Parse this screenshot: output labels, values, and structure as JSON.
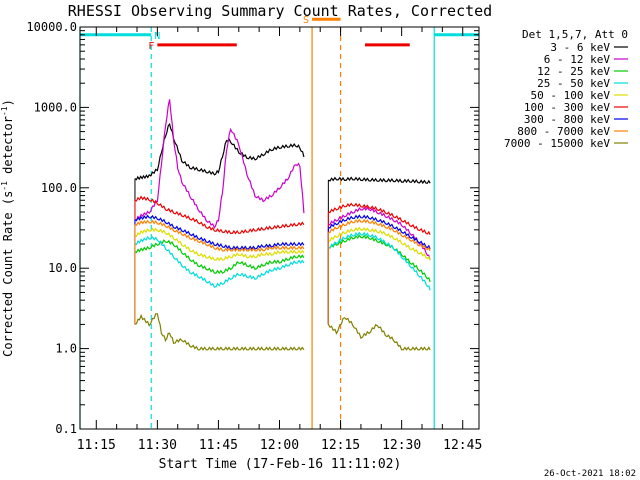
{
  "chart_data": {
    "type": "line",
    "title": "RHESSI Observing Summary Count Rates, Corrected",
    "xlabel": "Start Time (17-Feb-16 11:11:02)",
    "ylabel": "Corrected Count Rate (s⁻¹ detector⁻¹)",
    "ylabel_parts": {
      "base": "Corrected Count Rate (s",
      "sup1": "-1",
      "mid": " detector",
      "sup2": "-1",
      "end": ")"
    },
    "footer": "26-Oct-2021 18:02",
    "y_scale": "log",
    "ylim": [
      0.1,
      10000
    ],
    "xlim_minutes": [
      11.0,
      109.0
    ],
    "y_ticks": [
      {
        "value": 0.1,
        "label": "0.1"
      },
      {
        "value": 1,
        "label": "1.0"
      },
      {
        "value": 10,
        "label": "10.0"
      },
      {
        "value": 100,
        "label": "100.0"
      },
      {
        "value": 1000,
        "label": "1000.0"
      },
      {
        "value": 10000,
        "label": "10000.0"
      }
    ],
    "x_ticks": [
      {
        "value": 15,
        "label": "11:15"
      },
      {
        "value": 30,
        "label": "11:30"
      },
      {
        "value": 45,
        "label": "11:45"
      },
      {
        "value": 60,
        "label": "12:00"
      },
      {
        "value": 75,
        "label": "12:15"
      },
      {
        "value": 90,
        "label": "12:30"
      },
      {
        "value": 105,
        "label": "12:45"
      }
    ],
    "legend": {
      "title": "Det 1,5,7, Att 0",
      "placement": "right",
      "entries": [
        {
          "label": "3 - 6 keV",
          "color": "#000000"
        },
        {
          "label": "6 - 12 keV",
          "color": "#cc00cc"
        },
        {
          "label": "12 - 25 keV",
          "color": "#00cc00"
        },
        {
          "label": "25 - 50 keV",
          "color": "#00dddd"
        },
        {
          "label": "50 - 100 keV",
          "color": "#dddd00"
        },
        {
          "label": "100 - 300 keV",
          "color": "#ee0000"
        },
        {
          "label": "300 - 800 keV",
          "color": "#0000ee"
        },
        {
          "label": "800 - 7000 keV",
          "color": "#ff8000"
        },
        {
          "label": "7000 - 15000 keV",
          "color": "#808000"
        }
      ]
    },
    "segments": [
      {
        "x_start": 24.5,
        "x_end": 66.0
      },
      {
        "x_start": 72.0,
        "x_end": 97.0
      }
    ],
    "series": [
      {
        "name": "3 - 6 keV",
        "color": "#000000",
        "x": [
          24.5,
          28,
          30,
          31,
          32,
          33,
          34,
          36,
          38,
          40,
          42,
          44,
          45,
          46,
          47,
          48,
          50,
          52,
          54,
          56,
          58,
          60,
          62,
          64,
          65,
          66,
          72,
          74,
          76,
          78,
          80,
          82,
          84,
          86,
          88,
          90,
          92,
          94,
          96,
          97
        ],
        "y": [
          130,
          140,
          170,
          280,
          450,
          640,
          420,
          220,
          180,
          170,
          160,
          150,
          160,
          250,
          400,
          380,
          280,
          240,
          230,
          260,
          300,
          320,
          330,
          340,
          320,
          250,
          125,
          130,
          128,
          130,
          128,
          126,
          125,
          124,
          124,
          122,
          122,
          120,
          118,
          118
        ]
      },
      {
        "name": "6 - 12 keV",
        "color": "#cc00cc",
        "x": [
          24.5,
          26,
          28,
          30,
          31,
          32,
          33,
          34,
          35,
          36,
          38,
          40,
          42,
          44,
          45,
          46,
          47,
          48,
          50,
          52,
          54,
          56,
          58,
          60,
          62,
          64,
          65,
          66,
          72,
          74,
          76,
          78,
          80,
          82,
          84,
          86,
          88,
          90,
          92,
          94,
          96,
          97
        ],
        "y": [
          40,
          45,
          50,
          70,
          200,
          600,
          1300,
          400,
          180,
          120,
          80,
          55,
          40,
          33,
          40,
          90,
          300,
          550,
          350,
          150,
          80,
          70,
          80,
          100,
          130,
          200,
          190,
          50,
          35,
          40,
          45,
          50,
          55,
          55,
          50,
          45,
          40,
          35,
          28,
          22,
          16,
          13
        ]
      },
      {
        "name": "12 - 25 keV",
        "color": "#00cc00",
        "x": [
          24.5,
          26,
          28,
          30,
          32,
          34,
          36,
          38,
          40,
          42,
          44,
          46,
          48,
          50,
          52,
          54,
          56,
          58,
          60,
          62,
          64,
          66,
          72,
          74,
          76,
          78,
          80,
          82,
          84,
          86,
          88,
          90,
          92,
          94,
          96,
          97
        ],
        "y": [
          16,
          17,
          18,
          20,
          22,
          20,
          16,
          13,
          11,
          10,
          9,
          9,
          10,
          12,
          11,
          10,
          11,
          12,
          12,
          13,
          14,
          14,
          18,
          20,
          22,
          24,
          25,
          24,
          22,
          20,
          18,
          15,
          12,
          10,
          8,
          7
        ]
      },
      {
        "name": "25 - 50 keV",
        "color": "#00dddd",
        "x": [
          24.5,
          26,
          28,
          30,
          32,
          34,
          36,
          38,
          40,
          42,
          44,
          46,
          48,
          50,
          52,
          54,
          56,
          58,
          60,
          62,
          64,
          66,
          72,
          74,
          76,
          78,
          80,
          82,
          84,
          86,
          88,
          90,
          92,
          94,
          96,
          97
        ],
        "y": [
          20,
          22,
          24,
          23,
          18,
          14,
          11,
          9,
          8,
          7,
          6,
          6.5,
          7.5,
          8.5,
          8,
          7.5,
          8.5,
          9.5,
          10,
          11,
          12,
          12,
          18,
          21,
          24,
          26,
          27,
          26,
          24,
          21,
          18,
          14,
          11,
          8.5,
          6.5,
          5.5
        ]
      },
      {
        "name": "50 - 100 keV",
        "color": "#dddd00",
        "x": [
          24.5,
          26,
          28,
          30,
          32,
          34,
          36,
          38,
          40,
          42,
          44,
          46,
          48,
          50,
          52,
          54,
          56,
          58,
          60,
          62,
          64,
          66,
          72,
          74,
          76,
          78,
          80,
          82,
          84,
          86,
          88,
          90,
          92,
          94,
          96,
          97
        ],
        "y": [
          25,
          28,
          30,
          30,
          28,
          24,
          20,
          17,
          15,
          14,
          13,
          13,
          14,
          15,
          14,
          14,
          15,
          15,
          16,
          16,
          16,
          16,
          22,
          25,
          28,
          30,
          31,
          30,
          29,
          27,
          24,
          21,
          18,
          16,
          14,
          13
        ]
      },
      {
        "name": "100 - 300 keV",
        "color": "#ee0000",
        "x": [
          24.5,
          26,
          28,
          30,
          32,
          34,
          36,
          38,
          40,
          42,
          44,
          46,
          48,
          50,
          52,
          54,
          56,
          58,
          60,
          62,
          64,
          66,
          72,
          74,
          76,
          78,
          80,
          82,
          84,
          86,
          88,
          90,
          92,
          94,
          96,
          97
        ],
        "y": [
          70,
          75,
          72,
          65,
          55,
          50,
          46,
          42,
          38,
          33,
          30,
          29,
          28,
          28,
          29,
          30,
          31,
          32,
          33,
          34,
          35,
          36,
          50,
          55,
          60,
          62,
          60,
          58,
          55,
          50,
          45,
          40,
          35,
          31,
          28,
          27
        ]
      },
      {
        "name": "300 - 800 keV",
        "color": "#0000ee",
        "x": [
          24.5,
          26,
          28,
          30,
          32,
          34,
          36,
          38,
          40,
          42,
          44,
          46,
          48,
          50,
          52,
          54,
          56,
          58,
          60,
          62,
          64,
          66,
          72,
          74,
          76,
          78,
          80,
          82,
          84,
          86,
          88,
          90,
          92,
          94,
          96,
          97
        ],
        "y": [
          40,
          42,
          44,
          42,
          38,
          33,
          30,
          27,
          24,
          22,
          20,
          19,
          18,
          18,
          18,
          18,
          19,
          19,
          20,
          20,
          20,
          20,
          32,
          36,
          40,
          43,
          44,
          43,
          40,
          37,
          33,
          29,
          25,
          22,
          19,
          18
        ]
      },
      {
        "name": "800 - 7000 keV",
        "color": "#ff8000",
        "x": [
          24.5,
          26,
          28,
          30,
          32,
          34,
          36,
          38,
          40,
          42,
          44,
          46,
          48,
          50,
          52,
          54,
          56,
          58,
          60,
          62,
          64,
          66,
          72,
          74,
          76,
          78,
          80,
          82,
          84,
          86,
          88,
          90,
          92,
          94,
          96,
          97
        ],
        "y": [
          35,
          37,
          38,
          37,
          34,
          30,
          27,
          24,
          22,
          20,
          18,
          17,
          17,
          17,
          17,
          17,
          17,
          18,
          18,
          18,
          18,
          18,
          28,
          32,
          35,
          38,
          39,
          38,
          36,
          33,
          30,
          26,
          23,
          20,
          18,
          17
        ]
      },
      {
        "name": "7000 - 15000 keV",
        "color": "#808000",
        "x": [
          24.5,
          26,
          28,
          30,
          31,
          32,
          33,
          34,
          36,
          38,
          40,
          42,
          44,
          46,
          48,
          50,
          52,
          54,
          56,
          58,
          60,
          62,
          64,
          66,
          72,
          74,
          76,
          78,
          80,
          82,
          84,
          86,
          88,
          90,
          92,
          94,
          96,
          97
        ],
        "y": [
          2.0,
          2.5,
          2.0,
          2.8,
          1.6,
          1.3,
          1.6,
          1.2,
          1.3,
          1.1,
          1.0,
          1.0,
          1.0,
          1.0,
          1.0,
          1.0,
          1.0,
          1.0,
          1.0,
          1.0,
          1.0,
          1.0,
          1.0,
          1.0,
          2.0,
          1.6,
          2.5,
          2.0,
          1.4,
          1.6,
          2.0,
          1.5,
          1.3,
          1.0,
          1.0,
          1.0,
          1.0,
          1.0
        ]
      }
    ],
    "flags": [
      {
        "label": "F",
        "color": "#ee0000",
        "x_start": 30.0,
        "x_end": 49.5,
        "y": 6000,
        "label_side": "left"
      },
      {
        "label": "F",
        "color": "#ee0000",
        "x_start": 81.0,
        "x_end": 92.0,
        "y": 6000,
        "label_side": "none"
      },
      {
        "label": "N",
        "color": "#00dddd",
        "x_start": 11.0,
        "x_end": 28.5,
        "y": 8000,
        "label_side": "right"
      },
      {
        "label": "N",
        "color": "#00dddd",
        "x_start": 98.0,
        "x_end": 109.0,
        "y": 8000,
        "label_side": "none"
      },
      {
        "label": "S",
        "color": "#ff8000",
        "x_start": 68.0,
        "x_end": 75.0,
        "y": 12500,
        "label_side": "left"
      }
    ],
    "markers": [
      {
        "x": 11.0,
        "color": "#00dddd",
        "style": "solid"
      },
      {
        "x": 28.5,
        "color": "#00dddd",
        "style": "dashed"
      },
      {
        "x": 98.0,
        "color": "#00dddd",
        "style": "solid"
      },
      {
        "x": 112.0,
        "color": "#00dddd",
        "style": "dashed"
      },
      {
        "x": 68.0,
        "color": "#ff8000",
        "style": "solid"
      },
      {
        "x": 75.0,
        "color": "#ff8000",
        "style": "dashed"
      }
    ]
  }
}
